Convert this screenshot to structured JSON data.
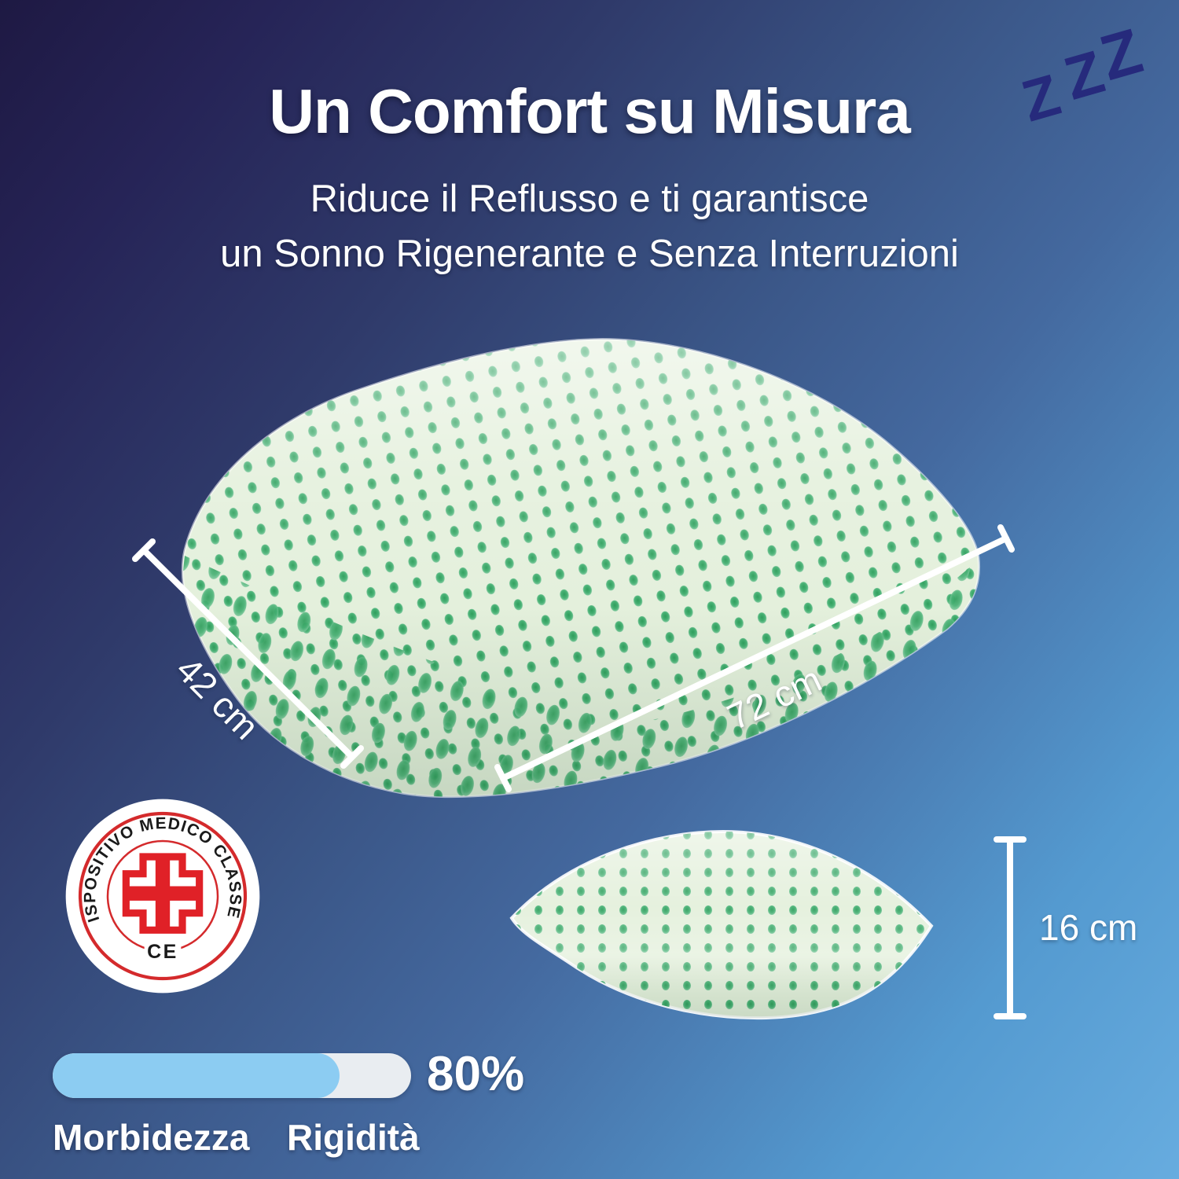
{
  "header": {
    "title": "Un Comfort su Misura",
    "subtitle_line1": "Riduce il Reflusso e ti garantisce",
    "subtitle_line2": "un Sonno Rigenerante e Senza Interruzioni"
  },
  "sleep_icon": {
    "letters": [
      "Z",
      "Z",
      "Z"
    ]
  },
  "dimensions": {
    "width_label": "42 cm",
    "length_label": "72 cm",
    "height_label": "16 cm"
  },
  "badge": {
    "ring_text": "DISPOSITIVO MEDICO CLASSE 1",
    "ce_label": "CE"
  },
  "softness": {
    "percent_label": "80%",
    "percent_value": 80,
    "left_label": "Morbidezza",
    "right_label": "Rigidità"
  },
  "colors": {
    "background_top_left": "#1e1943",
    "background_bottom_right": "#67acdf",
    "zzz_navy": "#262a7c",
    "badge_red": "#e02127",
    "pillow_base_green": "#e4f0dc",
    "pillow_hole_green": "#3fae6c",
    "bar_track": "#e9edf1",
    "bar_fill_blue": "#8cccf2",
    "text_white": "#ffffff"
  }
}
